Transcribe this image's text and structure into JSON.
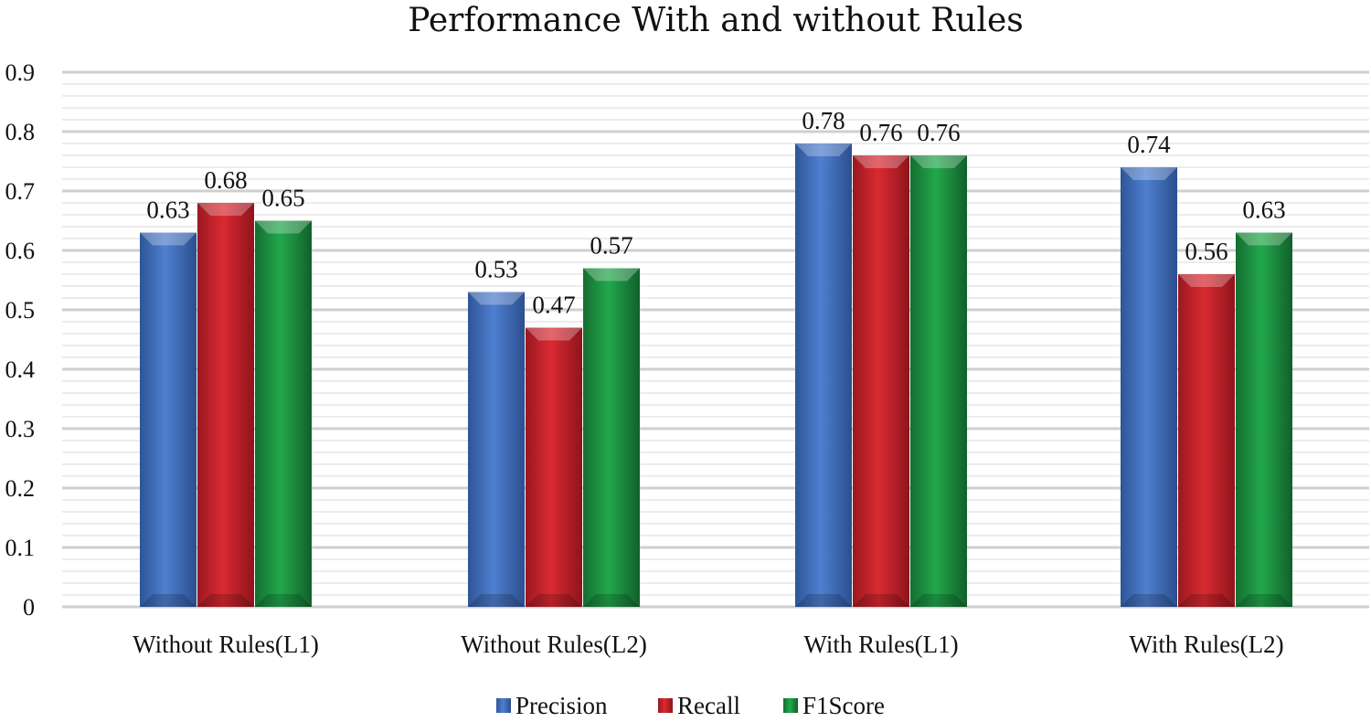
{
  "chart_data": {
    "type": "bar",
    "title": "Performance With and without Rules",
    "xlabel": "",
    "ylabel": "",
    "categories": [
      "Without Rules(L1)",
      "Without Rules(L2)",
      "With Rules(L1)",
      "With Rules(L2)"
    ],
    "series": [
      {
        "name": "Precision",
        "values": [
          0.63,
          0.53,
          0.78,
          0.74
        ],
        "color": "#4472C4"
      },
      {
        "name": "Recall",
        "values": [
          0.68,
          0.47,
          0.76,
          0.56
        ],
        "color": "#C8232A"
      },
      {
        "name": "F1Score",
        "values": [
          0.65,
          0.57,
          0.76,
          0.63
        ],
        "color": "#1E9A45"
      }
    ],
    "ylim": [
      0,
      0.9
    ],
    "yticks": [
      "0",
      "0.1",
      "0.2",
      "0.3",
      "0.4",
      "0.5",
      "0.6",
      "0.7",
      "0.8",
      "0.9"
    ],
    "data_labels": [
      [
        "0.63",
        "0.53",
        "0.78",
        "0.74"
      ],
      [
        "0.68",
        "0.47",
        "0.76",
        "0.56"
      ],
      [
        "0.65",
        "0.57",
        "0.76",
        "0.63"
      ]
    ],
    "grid": true,
    "legend": "bottom"
  }
}
